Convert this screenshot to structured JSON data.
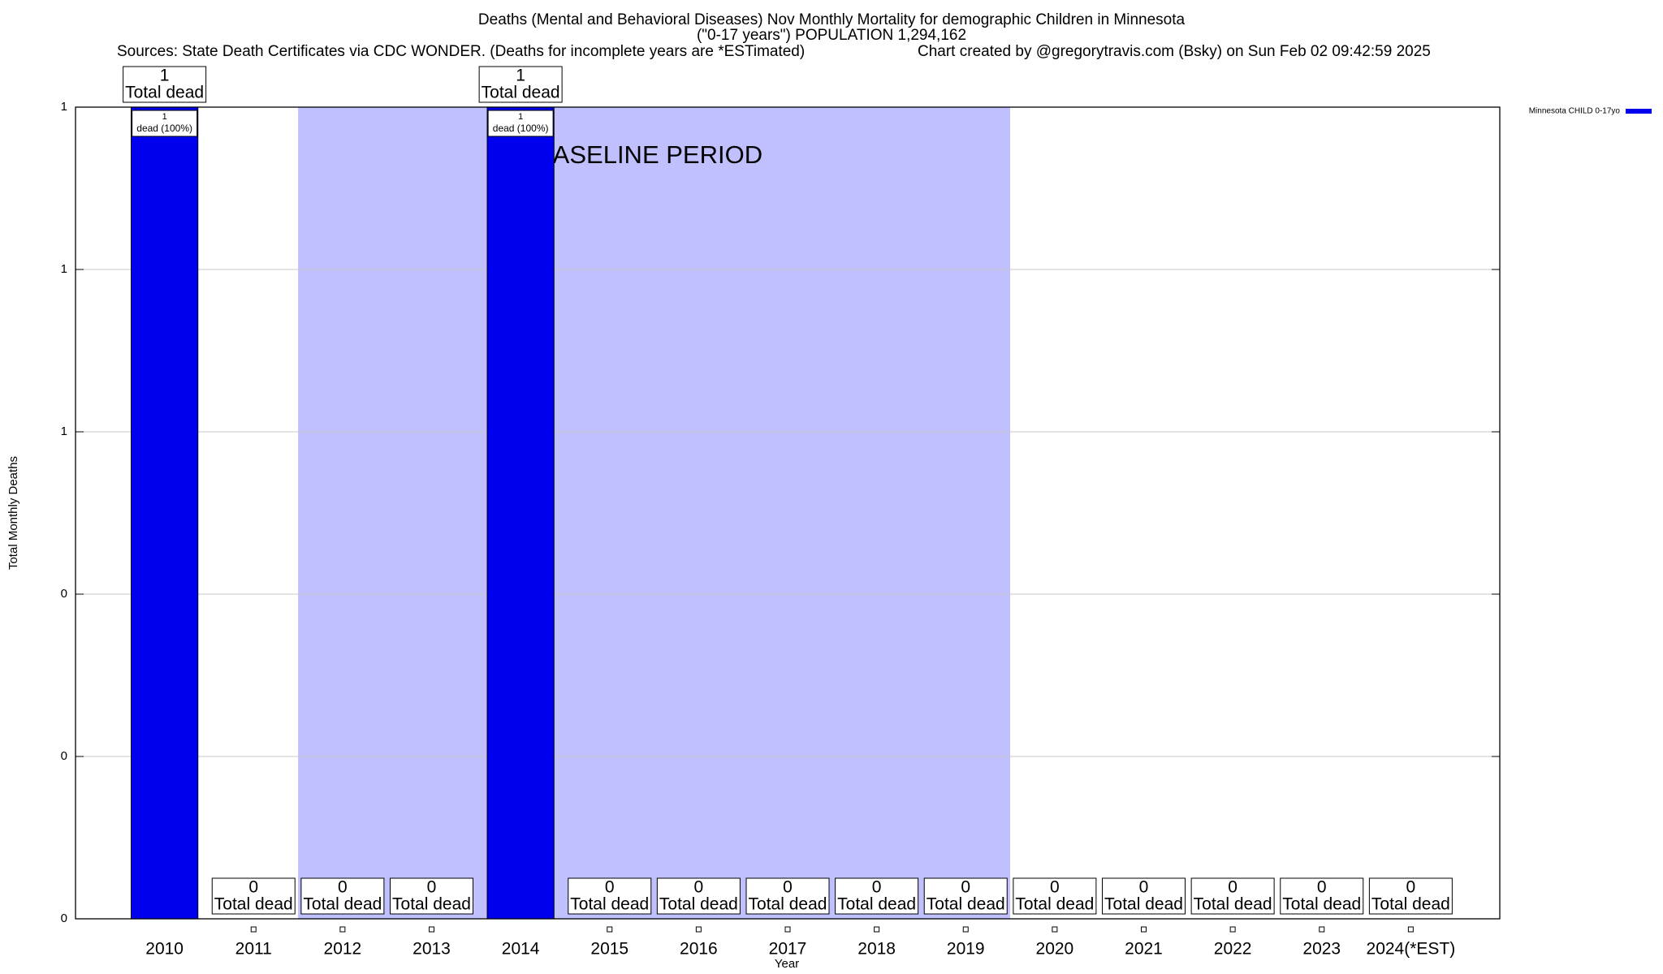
{
  "chart_data": {
    "type": "bar",
    "title": "Deaths (Mental and Behavioral Diseases) Nov Monthly Mortality for demographic Children in Minnesota",
    "subtitle": "(\"0-17 years\") POPULATION 1,294,162",
    "source": "Sources: State Death Certificates via CDC WONDER. (Deaths for incomplete years are *ESTimated)",
    "credit": "Chart created by @gregorytravis.com (Bsky) on Sun Feb 02 09:42:59 2025",
    "x_label": "Year",
    "y_label": "Total Monthly Deaths",
    "categories": [
      "2010",
      "2011",
      "2012",
      "2013",
      "2014",
      "2015",
      "2016",
      "2017",
      "2018",
      "2019",
      "2020",
      "2021",
      "2022",
      "2023",
      "2024(*EST)"
    ],
    "series": [
      {
        "name": "Minnesota CHILD 0-17yo",
        "color": "#0000ee",
        "values": [
          1,
          0,
          0,
          0,
          1,
          0,
          0,
          0,
          0,
          0,
          0,
          0,
          0,
          0,
          0
        ],
        "inner_labels": [
          "dead (100%)",
          null,
          null,
          null,
          "dead (100%)",
          null,
          null,
          null,
          null,
          null,
          null,
          null,
          null,
          null,
          null
        ]
      }
    ],
    "total_label": "Total dead",
    "baseline": {
      "label": "BASELINE PERIOD",
      "start": "2012",
      "end": "2019",
      "color": "#c0c0ff"
    },
    "ylim": [
      0,
      1
    ],
    "yticks": [
      0,
      {
        "value": 0.2,
        "label": "0"
      },
      {
        "value": 0.4,
        "label": "0"
      },
      {
        "value": 0.6,
        "label": "1"
      },
      {
        "value": 0.8,
        "label": "1"
      },
      1
    ],
    "grid": true,
    "legend": "top-right"
  }
}
